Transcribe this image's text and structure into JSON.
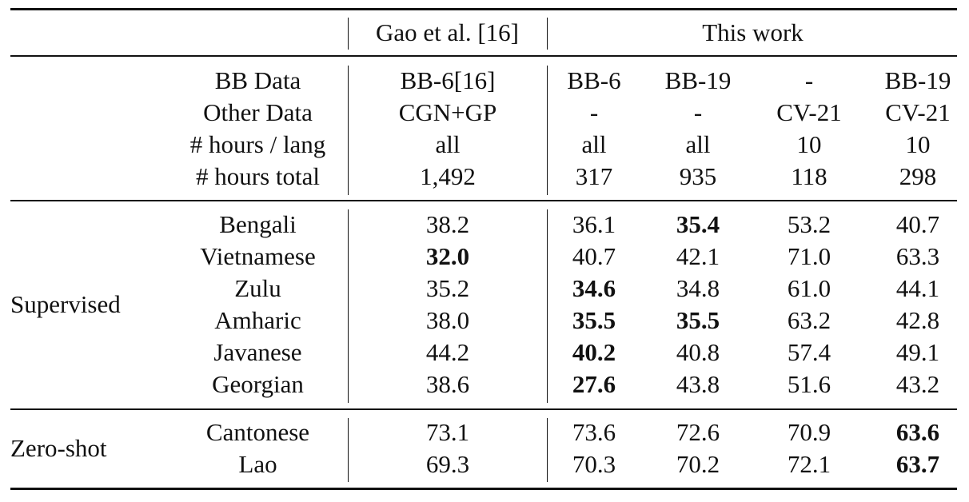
{
  "header": {
    "prior_group": "Gao et al. [16]",
    "this_group": "This work"
  },
  "config": {
    "rows": [
      {
        "label": "BB Data",
        "values": [
          "BB-6[16]",
          "BB-6",
          "BB-19",
          "-",
          "BB-19"
        ]
      },
      {
        "label": "Other Data",
        "values": [
          "CGN+GP",
          "-",
          "-",
          "CV-21",
          "CV-21"
        ]
      },
      {
        "label": "# hours / lang",
        "values": [
          "all",
          "all",
          "all",
          "10",
          "10"
        ]
      },
      {
        "label": "# hours total",
        "values": [
          "1,492",
          "317",
          "935",
          "118",
          "298"
        ]
      }
    ]
  },
  "sections": [
    {
      "name": "Supervised",
      "rows": [
        {
          "language": "Bengali",
          "values": [
            "38.2",
            "36.1",
            "35.4",
            "53.2",
            "40.7"
          ],
          "bold": [
            false,
            false,
            true,
            false,
            false
          ]
        },
        {
          "language": "Vietnamese",
          "values": [
            "32.0",
            "40.7",
            "42.1",
            "71.0",
            "63.3"
          ],
          "bold": [
            true,
            false,
            false,
            false,
            false
          ]
        },
        {
          "language": "Zulu",
          "values": [
            "35.2",
            "34.6",
            "34.8",
            "61.0",
            "44.1"
          ],
          "bold": [
            false,
            true,
            false,
            false,
            false
          ]
        },
        {
          "language": "Amharic",
          "values": [
            "38.0",
            "35.5",
            "35.5",
            "63.2",
            "42.8"
          ],
          "bold": [
            false,
            true,
            true,
            false,
            false
          ]
        },
        {
          "language": "Javanese",
          "values": [
            "44.2",
            "40.2",
            "40.8",
            "57.4",
            "49.1"
          ],
          "bold": [
            false,
            true,
            false,
            false,
            false
          ]
        },
        {
          "language": "Georgian",
          "values": [
            "38.6",
            "27.6",
            "43.8",
            "51.6",
            "43.2"
          ],
          "bold": [
            false,
            true,
            false,
            false,
            false
          ]
        }
      ]
    },
    {
      "name": "Zero-shot",
      "rows": [
        {
          "language": "Cantonese",
          "values": [
            "73.1",
            "73.6",
            "72.6",
            "70.9",
            "63.6"
          ],
          "bold": [
            false,
            false,
            false,
            false,
            true
          ]
        },
        {
          "language": "Lao",
          "values": [
            "69.3",
            "70.3",
            "70.2",
            "72.1",
            "63.7"
          ],
          "bold": [
            false,
            false,
            false,
            false,
            true
          ]
        }
      ]
    }
  ]
}
